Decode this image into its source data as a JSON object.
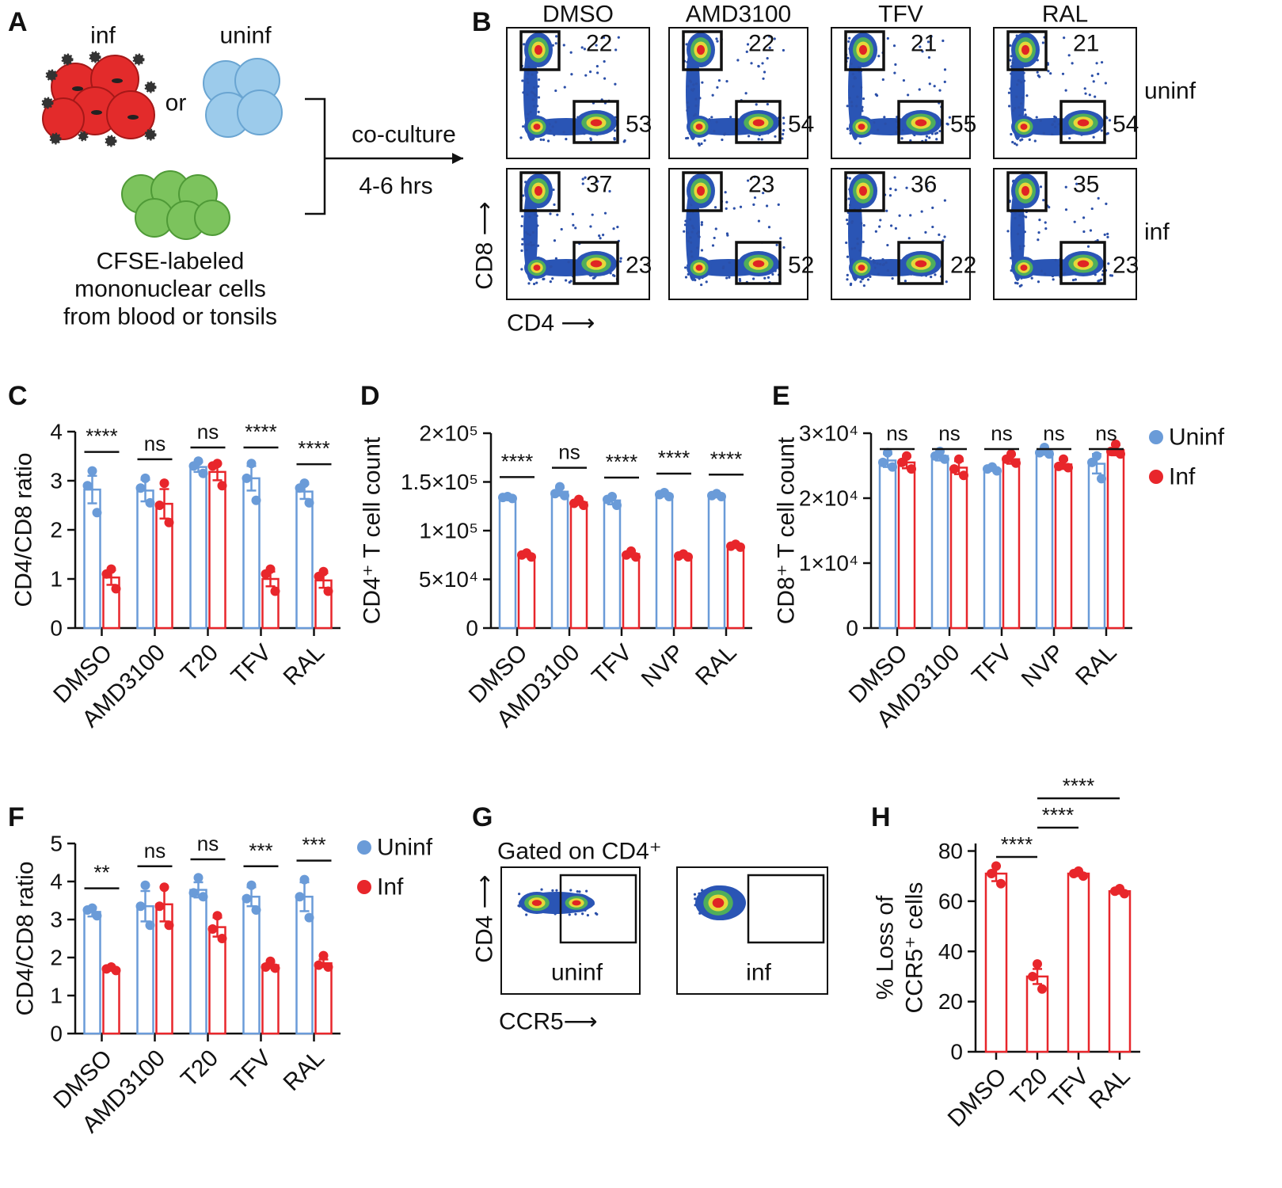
{
  "panel_labels": [
    "A",
    "B",
    "C",
    "D",
    "E",
    "F",
    "G",
    "H"
  ],
  "panel_a": {
    "infected": "inf",
    "uninfected": "uninf",
    "or": "or",
    "arrow_top": "co-culture",
    "arrow_bottom": "4-6 hrs",
    "caption": [
      "CFSE-labeled",
      "mononuclear cells",
      "from blood or tonsils"
    ]
  },
  "panel_b": {
    "columns": [
      "DMSO",
      "AMD3100",
      "TFV",
      "RAL"
    ],
    "rows": [
      "uninf",
      "inf"
    ],
    "y_label": "CD8 ⟶",
    "x_label": "CD4 ⟶",
    "gate_values": [
      [
        [
          22,
          53
        ],
        [
          22,
          54
        ],
        [
          21,
          55
        ],
        [
          21,
          54
        ]
      ],
      [
        [
          37,
          23
        ],
        [
          23,
          52
        ],
        [
          36,
          22
        ],
        [
          35,
          23
        ]
      ]
    ]
  },
  "panel_g": {
    "title": "Gated on CD4⁺",
    "y_label": "CD4 ⟶",
    "x_label": "CCR5⟶",
    "plots": [
      "uninf",
      "inf"
    ]
  },
  "chart_data": [
    {
      "type": "bar",
      "y_label": [
        "CD4/CD8 ratio"
      ],
      "categories": [
        "DMSO",
        "AMD3100",
        "T20",
        "TFV",
        "RAL"
      ],
      "ylim": [
        0,
        4
      ],
      "yticks": [
        0,
        1,
        2,
        3,
        4
      ],
      "series": [
        {
          "color": "#6a9bd8",
          "values": [
            2.82,
            2.8,
            3.28,
            3.05,
            2.78
          ],
          "errors": [
            0.28,
            0.22,
            0.1,
            0.25,
            0.15
          ],
          "points": [
            [
              3.2,
              2.9,
              2.35
            ],
            [
              3.05,
              2.85,
              2.55
            ],
            [
              3.4,
              3.3,
              3.15
            ],
            [
              3.35,
              3.05,
              2.6
            ],
            [
              2.95,
              2.85,
              2.55
            ]
          ]
        },
        {
          "color": "#e8262b",
          "values": [
            1.03,
            2.53,
            3.18,
            1.0,
            0.97
          ],
          "errors": [
            0.15,
            0.3,
            0.17,
            0.15,
            0.15
          ],
          "points": [
            [
              1.2,
              1.1,
              0.8
            ],
            [
              2.95,
              2.5,
              2.15
            ],
            [
              3.35,
              3.3,
              2.9
            ],
            [
              1.2,
              1.1,
              0.75
            ],
            [
              1.15,
              1.05,
              0.75
            ]
          ]
        }
      ],
      "significance": [
        "****",
        "ns",
        "ns",
        "****",
        "****"
      ]
    },
    {
      "type": "bar",
      "y_label": [
        "CD4⁺ T cell count"
      ],
      "categories": [
        "DMSO",
        "AMD3100",
        "TFV",
        "NVP",
        "RAL"
      ],
      "ylim": [
        0,
        200000
      ],
      "yticks": [
        0,
        {
          "value": 50000,
          "label": "5×10⁴"
        },
        {
          "value": 100000,
          "label": "1×10⁵"
        },
        {
          "value": 150000,
          "label": "1.5×10⁵"
        },
        {
          "value": 200000,
          "label": "2×10⁵"
        }
      ],
      "series": [
        {
          "color": "#6a9bd8",
          "values": [
            134000,
            140000,
            131000,
            137000,
            136000
          ],
          "errors": [
            1500,
            4000,
            4000,
            2000,
            1500
          ],
          "points": [
            [
              135000,
              134000,
              133000
            ],
            [
              145000,
              138000,
              136000
            ],
            [
              135000,
              132000,
              126000
            ],
            [
              139000,
              137000,
              135000
            ],
            [
              138000,
              136000,
              135000
            ]
          ]
        },
        {
          "color": "#e8262b",
          "values": [
            75000,
            129000,
            76000,
            74000,
            84000
          ],
          "errors": [
            2000,
            2500,
            3000,
            1500,
            1500
          ],
          "points": [
            [
              77000,
              75000,
              73000
            ],
            [
              132000,
              128000,
              126000
            ],
            [
              79000,
              75000,
              73000
            ],
            [
              76000,
              74000,
              73000
            ],
            [
              86000,
              84000,
              83000
            ]
          ]
        }
      ],
      "significance": [
        "****",
        "ns",
        "****",
        "****",
        "****"
      ]
    },
    {
      "type": "bar",
      "y_label": [
        "CD8⁺ T cell count"
      ],
      "categories": [
        "DMSO",
        "AMD3100",
        "TFV",
        "NVP",
        "RAL"
      ],
      "ylim": [
        0,
        30000
      ],
      "yticks": [
        0,
        {
          "value": 10000,
          "label": "1×10⁴"
        },
        {
          "value": 20000,
          "label": "2×10⁴"
        },
        {
          "value": 30000,
          "label": "3×10⁴"
        }
      ],
      "legend": "right",
      "series": [
        {
          "name": "Uninf",
          "color": "#6a9bd8",
          "values": [
            25800,
            26500,
            24500,
            27200,
            25300
          ],
          "errors": [
            1000,
            700,
            300,
            500,
            1500
          ],
          "points": [
            [
              27000,
              25500,
              24800
            ],
            [
              27200,
              26500,
              26000
            ],
            [
              24800,
              24500,
              24200
            ],
            [
              27800,
              27000,
              26800
            ],
            [
              26500,
              25500,
              23000
            ]
          ]
        },
        {
          "name": "Inf",
          "color": "#e8262b",
          "values": [
            25500,
            24700,
            26000,
            25200,
            27400
          ],
          "errors": [
            900,
            1000,
            700,
            700,
            800
          ],
          "points": [
            [
              26500,
              25500,
              24500
            ],
            [
              26000,
              24500,
              23500
            ],
            [
              26800,
              26000,
              25400
            ],
            [
              26000,
              24900,
              24700
            ],
            [
              28300,
              27200,
              26800
            ]
          ]
        }
      ],
      "significance": [
        "ns",
        "ns",
        "ns",
        "ns",
        "ns"
      ]
    },
    {
      "type": "bar",
      "y_label": [
        "CD4/CD8 ratio"
      ],
      "categories": [
        "DMSO",
        "AMD3100",
        "T20",
        "TFV",
        "RAL"
      ],
      "ylim": [
        0,
        5
      ],
      "yticks": [
        0,
        1,
        2,
        3,
        4,
        5
      ],
      "legend": "right",
      "series": [
        {
          "name": "Uninf",
          "color": "#6a9bd8",
          "values": [
            3.2,
            3.35,
            3.78,
            3.6,
            3.6
          ],
          "errors": [
            0.12,
            0.4,
            0.2,
            0.25,
            0.38
          ],
          "points": [
            [
              3.3,
              3.25,
              3.1
            ],
            [
              3.9,
              3.35,
              2.85
            ],
            [
              4.1,
              3.7,
              3.6
            ],
            [
              3.9,
              3.55,
              3.25
            ],
            [
              4.05,
              3.6,
              3.05
            ]
          ]
        },
        {
          "name": "Inf",
          "color": "#e8262b",
          "values": [
            1.7,
            3.4,
            2.8,
            1.8,
            1.85
          ],
          "errors": [
            0.05,
            0.45,
            0.25,
            0.08,
            0.1
          ],
          "points": [
            [
              1.75,
              1.7,
              1.66
            ],
            [
              3.85,
              3.35,
              2.85
            ],
            [
              3.1,
              2.75,
              2.5
            ],
            [
              1.9,
              1.75,
              1.72
            ],
            [
              2.05,
              1.8,
              1.75
            ]
          ]
        }
      ],
      "significance": [
        "**",
        "ns",
        "ns",
        "***",
        "***"
      ]
    },
    {
      "type": "bar",
      "y_label": [
        "% Loss of",
        "CCR5⁺ cells"
      ],
      "categories": [
        "DMSO",
        "T20",
        "TFV",
        "RAL"
      ],
      "ylim": [
        0,
        83
      ],
      "yticks": [
        0,
        20,
        40,
        60,
        80
      ],
      "series": [
        {
          "color": "#e8262b",
          "values": [
            71,
            30,
            71,
            64
          ],
          "errors": [
            3,
            3,
            1,
            1
          ],
          "points": [
            [
              74,
              71,
              67
            ],
            [
              35,
              30,
              25
            ],
            [
              72,
              71,
              70
            ],
            [
              65,
              64,
              63
            ]
          ]
        }
      ],
      "comparisons": [
        {
          "between": [
            "DMSO",
            "T20"
          ],
          "label": "****"
        },
        {
          "between": [
            "T20",
            "TFV"
          ],
          "label": "****"
        },
        {
          "between": [
            "T20",
            "RAL"
          ],
          "label": "****"
        }
      ]
    }
  ]
}
